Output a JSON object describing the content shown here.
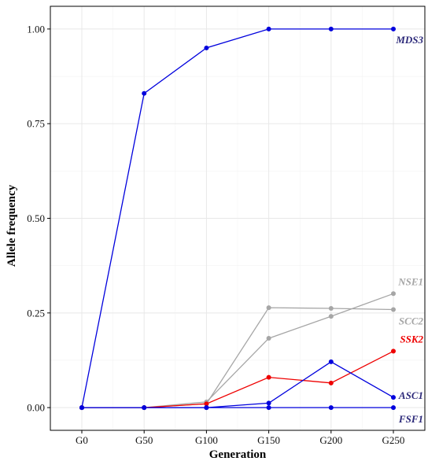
{
  "chart_data": {
    "type": "line",
    "xlabel": "Generation",
    "ylabel": "Allele frequency",
    "categories": [
      "G0",
      "G50",
      "G100",
      "G150",
      "G200",
      "G250"
    ],
    "yticks": [
      "0.00",
      "0.25",
      "0.50",
      "0.75",
      "1.00"
    ],
    "ylim": [
      -0.06,
      1.06
    ],
    "grid": true,
    "legend": "none",
    "series": [
      {
        "name": "MDS3",
        "color": "#0000dd",
        "label_color": "#2d2a7a",
        "values": [
          0,
          0.83,
          0.95,
          1.0,
          1.0,
          1.0
        ]
      },
      {
        "name": "NSE1",
        "color": "#a6a6a6",
        "label_color": "#a6a6a6",
        "values": [
          0,
          0,
          0.015,
          0.183,
          0.241,
          0.301
        ]
      },
      {
        "name": "SCC2",
        "color": "#a6a6a6",
        "label_color": "#a6a6a6",
        "values": [
          0,
          0,
          0.01,
          0.264,
          0.262,
          0.259
        ]
      },
      {
        "name": "SSK2",
        "color": "#ee0000",
        "label_color": "#ee0000",
        "values": [
          0,
          0,
          0.01,
          0.08,
          0.065,
          0.149
        ]
      },
      {
        "name": "ASC1",
        "color": "#0000dd",
        "label_color": "#2d2a7a",
        "values": [
          0,
          0,
          0,
          0.012,
          0.121,
          0.027
        ]
      },
      {
        "name": "FSF1",
        "color": "#0000dd",
        "label_color": "#2d2a7a",
        "values": [
          0,
          0,
          0,
          0,
          0,
          0
        ]
      }
    ]
  }
}
